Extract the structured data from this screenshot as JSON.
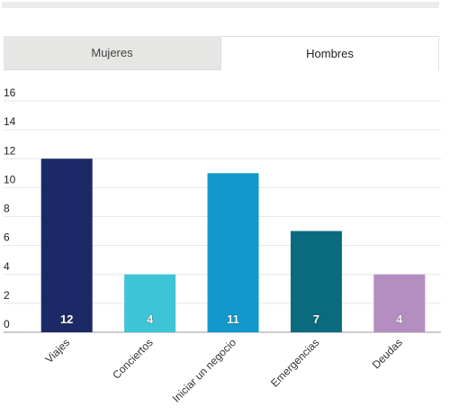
{
  "tabs": [
    {
      "label": "Mujeres",
      "active": false
    },
    {
      "label": "Hombres",
      "active": true
    }
  ],
  "chart_data": {
    "type": "bar",
    "categories": [
      "Viajes",
      "Conciertos",
      "Iniciar un negocio",
      "Emergencias",
      "Deudas"
    ],
    "values": [
      12,
      4,
      11,
      7,
      4
    ],
    "colors": [
      "#1b2a66",
      "#3dc4d6",
      "#1199cc",
      "#0a6a80",
      "#b48ec0"
    ],
    "ylim": [
      0,
      16
    ],
    "yticks": [
      0,
      2,
      4,
      6,
      8,
      10,
      12,
      14,
      16
    ],
    "grid": true,
    "title": "",
    "xlabel": "",
    "ylabel": ""
  }
}
